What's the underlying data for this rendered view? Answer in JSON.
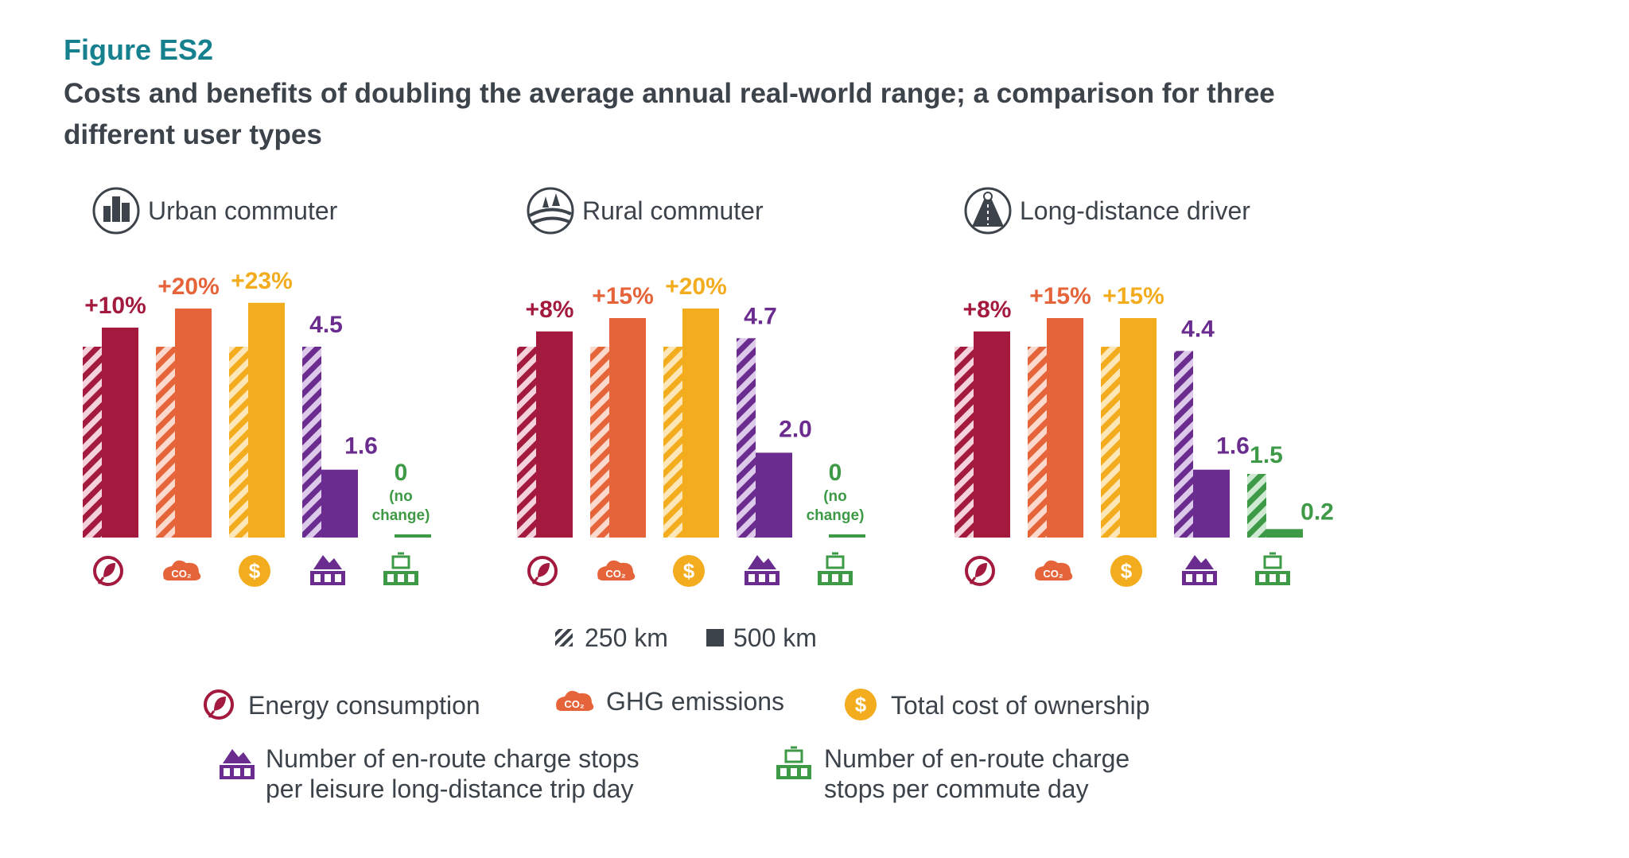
{
  "figure_label": "Figure ES2",
  "title": "Costs and benefits of doubling the average annual real-world range; a comparison for three different user types",
  "colors": {
    "energy": "#a31a3e",
    "ghg": "#e6643a",
    "tco": "#f2ac1d",
    "leisure_stops": "#6a2c8e",
    "commute_stops": "#3e9a46",
    "text": "#3d434b",
    "teal": "#16808f"
  },
  "icons": {
    "urban": "city-buildings-icon",
    "rural": "rural-landscape-icon",
    "long_distance": "highway-road-icon",
    "energy": "plug-leaf-icon",
    "ghg": "co2-cloud-icon",
    "tco": "dollar-coin-icon",
    "leisure": "mountain-charger-icon",
    "commute": "briefcase-charger-icon"
  },
  "chart_data": {
    "type": "bar",
    "groups": [
      {
        "name": "Urban commuter",
        "bars": [
          {
            "metric": "energy",
            "baseline": 100,
            "value": 110,
            "label": "+10%"
          },
          {
            "metric": "ghg",
            "baseline": 100,
            "value": 120,
            "label": "+20%"
          },
          {
            "metric": "tco",
            "baseline": 100,
            "value": 123,
            "label": "+23%"
          },
          {
            "metric": "leisure_stops",
            "baseline": 4.5,
            "value": 1.6,
            "label_baseline": "4.5",
            "label": "1.6"
          },
          {
            "metric": "commute_stops",
            "baseline": 0,
            "value": 0,
            "label": "0",
            "note": [
              "(no",
              "change)"
            ]
          }
        ]
      },
      {
        "name": "Rural commuter",
        "bars": [
          {
            "metric": "energy",
            "baseline": 100,
            "value": 108,
            "label": "+8%"
          },
          {
            "metric": "ghg",
            "baseline": 100,
            "value": 115,
            "label": "+15%"
          },
          {
            "metric": "tco",
            "baseline": 100,
            "value": 120,
            "label": "+20%"
          },
          {
            "metric": "leisure_stops",
            "baseline": 4.7,
            "value": 2.0,
            "label_baseline": "4.7",
            "label": "2.0"
          },
          {
            "metric": "commute_stops",
            "baseline": 0,
            "value": 0,
            "label": "0",
            "note": [
              "(no",
              "change)"
            ]
          }
        ]
      },
      {
        "name": "Long-distance driver",
        "bars": [
          {
            "metric": "energy",
            "baseline": 100,
            "value": 108,
            "label": "+8%"
          },
          {
            "metric": "ghg",
            "baseline": 100,
            "value": 115,
            "label": "+15%"
          },
          {
            "metric": "tco",
            "baseline": 100,
            "value": 115,
            "label": "+15%"
          },
          {
            "metric": "leisure_stops",
            "baseline": 4.4,
            "value": 1.6,
            "label_baseline": "4.4",
            "label": "1.6"
          },
          {
            "metric": "commute_stops",
            "baseline": 1.5,
            "value": 0.2,
            "label_baseline": "1.5",
            "label": "0.2"
          }
        ]
      }
    ],
    "series_legend": [
      {
        "name": "250 km",
        "pattern": "hatched"
      },
      {
        "name": "500 km",
        "pattern": "solid"
      }
    ],
    "metric_legend": [
      {
        "metric": "energy",
        "label": "Energy consumption"
      },
      {
        "metric": "ghg",
        "label": "GHG emissions"
      },
      {
        "metric": "tco",
        "label": "Total cost of ownership"
      },
      {
        "metric": "leisure_stops",
        "label": "Number of en-route charge stops per leisure long-distance trip day"
      },
      {
        "metric": "commute_stops",
        "label": "Number of en-route charge stops per commute day"
      }
    ]
  }
}
